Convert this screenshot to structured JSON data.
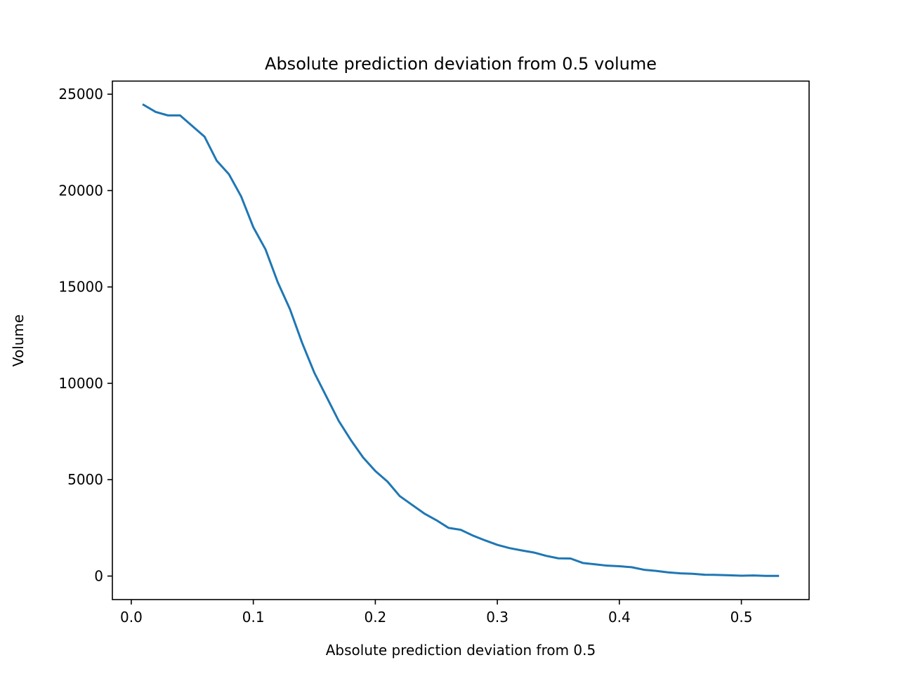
{
  "chart_data": {
    "type": "line",
    "title": "Absolute prediction deviation from 0.5 volume",
    "xlabel": "Absolute prediction deviation from 0.5",
    "ylabel": "Volume",
    "xlim": [
      -0.0155,
      0.5555
    ],
    "ylim": [
      -1220,
      25680
    ],
    "xticks": [
      0.0,
      0.1,
      0.2,
      0.3,
      0.4,
      0.5
    ],
    "xtick_labels": [
      "0.0",
      "0.1",
      "0.2",
      "0.3",
      "0.4",
      "0.5"
    ],
    "yticks": [
      0,
      5000,
      10000,
      15000,
      20000,
      25000
    ],
    "ytick_labels": [
      "0",
      "5000",
      "10000",
      "15000",
      "20000",
      "25000"
    ],
    "grid": false,
    "line_color": "#1f77b4",
    "series": [
      {
        "x": [
          0.01,
          0.02,
          0.03,
          0.04,
          0.05,
          0.06,
          0.07,
          0.08,
          0.09,
          0.1,
          0.11,
          0.12,
          0.13,
          0.14,
          0.15,
          0.16,
          0.17,
          0.18,
          0.19,
          0.2,
          0.21,
          0.22,
          0.23,
          0.24,
          0.25,
          0.26,
          0.27,
          0.28,
          0.29,
          0.3,
          0.31,
          0.32,
          0.33,
          0.34,
          0.35,
          0.36,
          0.37,
          0.38,
          0.39,
          0.4,
          0.41,
          0.42,
          0.43,
          0.44,
          0.45,
          0.46,
          0.47,
          0.48,
          0.49,
          0.5,
          0.51,
          0.52,
          0.53
        ],
        "values": [
          24450,
          24080,
          23900,
          23900,
          23350,
          22800,
          21550,
          20850,
          19700,
          18100,
          16950,
          15250,
          13850,
          12100,
          10550,
          9300,
          8050,
          7050,
          6150,
          5450,
          4900,
          4150,
          3700,
          3250,
          2900,
          2500,
          2400,
          2100,
          1850,
          1620,
          1450,
          1330,
          1220,
          1050,
          920,
          910,
          680,
          610,
          540,
          510,
          460,
          330,
          270,
          190,
          140,
          120,
          70,
          60,
          40,
          20,
          30,
          10,
          10
        ]
      }
    ]
  }
}
